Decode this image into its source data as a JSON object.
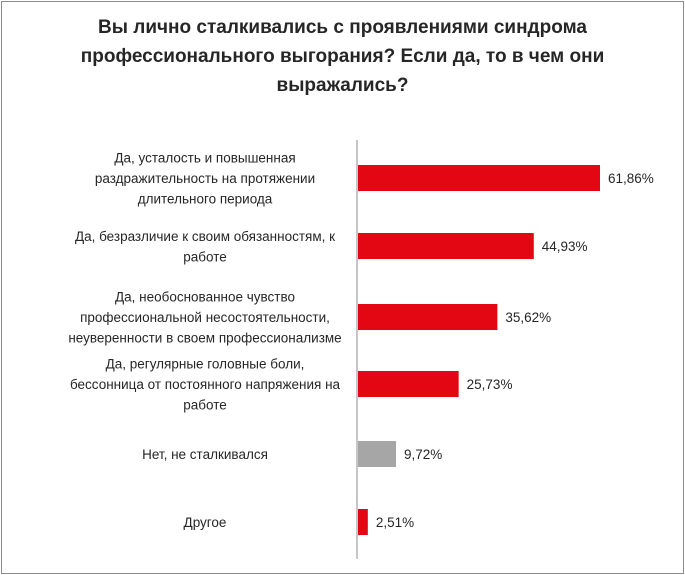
{
  "chart_data": {
    "type": "bar",
    "orientation": "horizontal",
    "title": "Вы лично сталкивались с проявлениями синдрома профессионального выгорания? Если да, то в чем они выражались?",
    "title_lines": [
      "Вы лично сталкивались с проявлениями синдрома",
      "профессионального выгорания? Если да, то в чем они",
      "выражались?"
    ],
    "categories": [
      "Да, усталость и повышенная раздражительность на протяжении длительного периода",
      "Да, безразличие к своим обязанностям, к работе",
      "Да, необоснованное чувство профессиональной несостоятельности, неуверенности в своем профессионализме",
      "Да, регулярные головные боли, бессонница от постоянного напряжения на работе",
      "Нет, не сталкивался",
      "Другое"
    ],
    "category_lines": [
      [
        "Да, усталость и повышенная",
        "раздражительность на протяжении",
        "длительного периода"
      ],
      [
        "Да, безразличие к своим обязанностям, к",
        "работе"
      ],
      [
        "Да, необоснованное чувство",
        "профессиональной несостоятельности,",
        "неуверенности в своем профессионализме"
      ],
      [
        "Да, регулярные головные боли,",
        "бессонница от постоянного напряжения на",
        "работе"
      ],
      [
        "Нет, не сталкивался"
      ],
      [
        "Другое"
      ]
    ],
    "values": [
      61.86,
      44.93,
      35.62,
      25.73,
      9.72,
      2.51
    ],
    "value_labels": [
      "61,86%",
      "44,93%",
      "35,62%",
      "25,73%",
      "9,72%",
      "2,51%"
    ],
    "bar_colors": [
      "#e30613",
      "#e30613",
      "#e30613",
      "#e30613",
      "#a6a6a6",
      "#e30613"
    ],
    "xlim": [
      0,
      100
    ],
    "xlabel": "",
    "ylabel": "",
    "grid": false,
    "legend": "none"
  }
}
